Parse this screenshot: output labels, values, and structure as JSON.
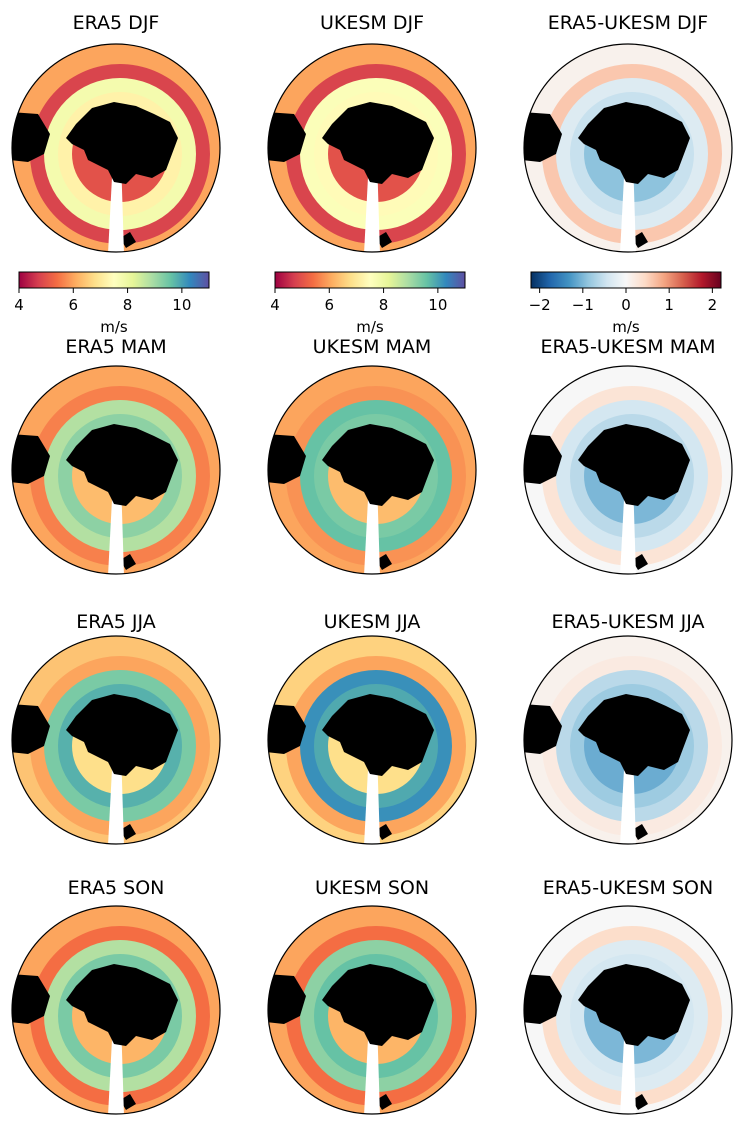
{
  "chart_data": {
    "type": "heatmap",
    "projection": "south-polar-stereographic",
    "rows": [
      "DJF",
      "MAM",
      "JJA",
      "SON"
    ],
    "columns": [
      "ERA5",
      "UKESM",
      "ERA5-UKESM"
    ],
    "panels": [
      {
        "title": "ERA5 DJF",
        "field": "era5",
        "season": "DJF"
      },
      {
        "title": "UKESM DJF",
        "field": "ukesm",
        "season": "DJF"
      },
      {
        "title": "ERA5-UKESM DJF",
        "field": "diff",
        "season": "DJF"
      },
      {
        "title": "ERA5 MAM",
        "field": "era5",
        "season": "MAM"
      },
      {
        "title": "UKESM MAM",
        "field": "ukesm",
        "season": "MAM"
      },
      {
        "title": "ERA5-UKESM MAM",
        "field": "diff",
        "season": "MAM"
      },
      {
        "title": "ERA5 JJA",
        "field": "era5",
        "season": "JJA"
      },
      {
        "title": "UKESM JJA",
        "field": "ukesm",
        "season": "JJA"
      },
      {
        "title": "ERA5-UKESM JJA",
        "field": "diff",
        "season": "JJA"
      },
      {
        "title": "ERA5 SON",
        "field": "era5",
        "season": "SON"
      },
      {
        "title": "UKESM SON",
        "field": "ukesm",
        "season": "SON"
      },
      {
        "title": "ERA5-UKESM SON",
        "field": "diff",
        "season": "SON"
      }
    ],
    "colorbars": [
      {
        "label": "m/s",
        "range": [
          4,
          11
        ],
        "ticks": [
          4,
          6,
          8,
          10
        ],
        "tick_labels": [
          "4",
          "6",
          "8",
          "10"
        ],
        "cmap": "Spectral",
        "applies_to": "ERA5"
      },
      {
        "label": "m/s",
        "range": [
          4,
          11
        ],
        "ticks": [
          4,
          6,
          8,
          10
        ],
        "tick_labels": [
          "4",
          "6",
          "8",
          "10"
        ],
        "cmap": "Spectral",
        "applies_to": "UKESM"
      },
      {
        "label": "m/s",
        "range": [
          -2.2,
          2.2
        ],
        "ticks": [
          -2,
          -1,
          0,
          1,
          2
        ],
        "tick_labels": [
          "−2",
          "−1",
          "0",
          "1",
          "2"
        ],
        "cmap": "RdBu_r",
        "applies_to": "ERA5-UKESM"
      }
    ],
    "approx_ring_values": {
      "era5": {
        "DJF": [
          6.0,
          4.8,
          7.8,
          7.2,
          5.0
        ],
        "MAM": [
          6.0,
          5.6,
          8.8,
          9.2,
          6.3
        ],
        "JJA": [
          6.4,
          6.0,
          9.4,
          9.8,
          6.8
        ],
        "SON": [
          6.0,
          5.4,
          8.8,
          9.4,
          6.2
        ]
      },
      "ukesm": {
        "DJF": [
          6.0,
          4.8,
          7.6,
          7.4,
          5.0
        ],
        "MAM": [
          6.0,
          5.8,
          9.6,
          9.4,
          6.3
        ],
        "JJA": [
          6.6,
          6.0,
          10.2,
          9.9,
          6.8
        ],
        "SON": [
          6.0,
          5.4,
          9.2,
          9.6,
          6.2
        ]
      },
      "diff": {
        "DJF": [
          0.1,
          0.6,
          -0.3,
          -0.5,
          -0.9
        ],
        "MAM": [
          0.0,
          0.3,
          -0.4,
          -0.6,
          -1.0
        ],
        "JJA": [
          0.1,
          0.2,
          -0.6,
          -0.8,
          -1.1
        ],
        "SON": [
          0.0,
          0.4,
          -0.3,
          -0.4,
          -1.0
        ]
      }
    },
    "colors": {
      "land": "#000000",
      "missing_sector": "#ffffff",
      "outline": "#000000"
    }
  }
}
